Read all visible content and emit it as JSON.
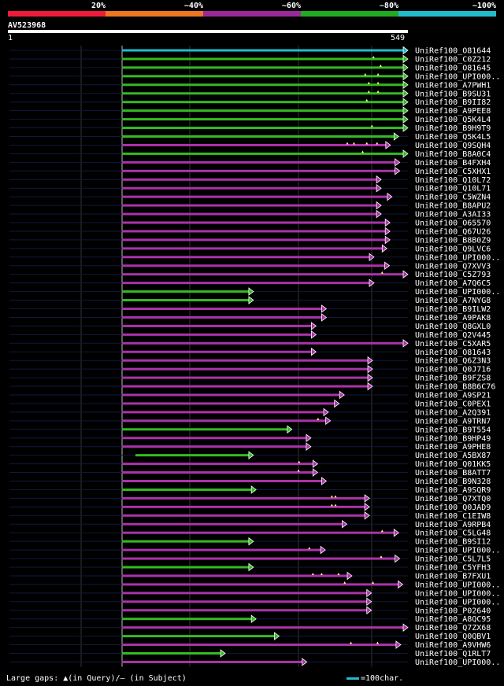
{
  "legend": [
    {
      "label": "20%",
      "color": "#ee1c3a"
    },
    {
      "label": "~40%",
      "color": "#ee7722"
    },
    {
      "label": "~60%",
      "color": "#9a2a9a"
    },
    {
      "label": "~80%",
      "color": "#22aa22"
    },
    {
      "label": "~100%",
      "color": "#22bbcc"
    }
  ],
  "query": {
    "id": "AV523968",
    "start": "1",
    "end": "549"
  },
  "colors": {
    "cyan": "#22bbcc",
    "green": "#33bb22",
    "magenta": "#aa33aa",
    "faint": "#101840",
    "grid": "#333333"
  },
  "hits": [
    {
      "name": "UniRef100_O81644",
      "color": "cyan",
      "start": 1,
      "end": 549,
      "gaps": []
    },
    {
      "name": "UniRef100_C0Z212",
      "color": "green",
      "start": 1,
      "end": 549,
      "gaps": [
        491
      ]
    },
    {
      "name": "UniRef100_O81645",
      "color": "green",
      "start": 1,
      "end": 549,
      "gaps": [
        505
      ]
    },
    {
      "name": "UniRef100_UPI000..",
      "color": "green",
      "start": 1,
      "end": 549,
      "gaps": [
        475,
        500
      ]
    },
    {
      "name": "UniRef100_A7PWH1",
      "color": "green",
      "start": 1,
      "end": 549,
      "gaps": [
        482,
        500
      ]
    },
    {
      "name": "UniRef100_B9SU31",
      "color": "green",
      "start": 1,
      "end": 549,
      "gaps": [
        482,
        500
      ]
    },
    {
      "name": "UniRef100_B9II82",
      "color": "green",
      "start": 1,
      "end": 549,
      "gaps": [
        478
      ]
    },
    {
      "name": "UniRef100_A9PEE8",
      "color": "green",
      "start": 1,
      "end": 549,
      "gaps": []
    },
    {
      "name": "UniRef100_Q5K4L4",
      "color": "green",
      "start": 1,
      "end": 549,
      "gaps": []
    },
    {
      "name": "UniRef100_B9H9T9",
      "color": "green",
      "start": 1,
      "end": 549,
      "gaps": [
        488
      ]
    },
    {
      "name": "UniRef100_Q5K4L5",
      "color": "green",
      "start": 1,
      "end": 531,
      "gaps": []
    },
    {
      "name": "UniRef100_Q9SQH4",
      "color": "magenta",
      "start": 1,
      "end": 515,
      "gaps": [
        440,
        453,
        478,
        498
      ]
    },
    {
      "name": "UniRef100_B8A0C4",
      "color": "green",
      "start": 1,
      "end": 549,
      "gaps": [
        470
      ]
    },
    {
      "name": "UniRef100_B4FXH4",
      "color": "magenta",
      "start": 1,
      "end": 533,
      "gaps": []
    },
    {
      "name": "UniRef100_C5XHX1",
      "color": "magenta",
      "start": 1,
      "end": 533,
      "gaps": []
    },
    {
      "name": "UniRef100_Q10L72",
      "color": "magenta",
      "start": 1,
      "end": 497,
      "gaps": []
    },
    {
      "name": "UniRef100_Q10L71",
      "color": "magenta",
      "start": 1,
      "end": 497,
      "gaps": []
    },
    {
      "name": "UniRef100_C5WZN4",
      "color": "magenta",
      "start": 1,
      "end": 518,
      "gaps": []
    },
    {
      "name": "UniRef100_B8APU2",
      "color": "magenta",
      "start": 1,
      "end": 497,
      "gaps": []
    },
    {
      "name": "UniRef100_A3AI33",
      "color": "magenta",
      "start": 1,
      "end": 497,
      "gaps": []
    },
    {
      "name": "UniRef100_O65570",
      "color": "magenta",
      "start": 1,
      "end": 514,
      "gaps": []
    },
    {
      "name": "UniRef100_Q67U26",
      "color": "magenta",
      "start": 1,
      "end": 514,
      "gaps": []
    },
    {
      "name": "UniRef100_B8B0Z9",
      "color": "magenta",
      "start": 1,
      "end": 514,
      "gaps": []
    },
    {
      "name": "UniRef100_Q9LVC6",
      "color": "magenta",
      "start": 1,
      "end": 508,
      "gaps": []
    },
    {
      "name": "UniRef100_UPI000..",
      "color": "magenta",
      "start": 1,
      "end": 483,
      "gaps": []
    },
    {
      "name": "UniRef100_Q7XVV3",
      "color": "magenta",
      "start": 1,
      "end": 513,
      "gaps": []
    },
    {
      "name": "UniRef100_C5Z793",
      "color": "magenta",
      "start": 1,
      "end": 549,
      "gaps": [
        508
      ]
    },
    {
      "name": "UniRef100_A7Q6C5",
      "color": "magenta",
      "start": 1,
      "end": 483,
      "gaps": []
    },
    {
      "name": "UniRef100_UPI000..",
      "color": "green",
      "start": 1,
      "end": 248,
      "gaps": []
    },
    {
      "name": "UniRef100_A7NYG8",
      "color": "green",
      "start": 1,
      "end": 248,
      "gaps": []
    },
    {
      "name": "UniRef100_B9ILW2",
      "color": "magenta",
      "start": 1,
      "end": 390,
      "gaps": []
    },
    {
      "name": "UniRef100_A9PAK8",
      "color": "magenta",
      "start": 1,
      "end": 390,
      "gaps": []
    },
    {
      "name": "UniRef100_Q8GXL0",
      "color": "magenta",
      "start": 1,
      "end": 370,
      "gaps": []
    },
    {
      "name": "UniRef100_Q2V445",
      "color": "magenta",
      "start": 1,
      "end": 370,
      "gaps": []
    },
    {
      "name": "UniRef100_C5XAR5",
      "color": "magenta",
      "start": 1,
      "end": 549,
      "gaps": []
    },
    {
      "name": "UniRef100_O81643",
      "color": "magenta",
      "start": 1,
      "end": 370,
      "gaps": []
    },
    {
      "name": "UniRef100_Q6Z3N3",
      "color": "magenta",
      "start": 1,
      "end": 480,
      "gaps": []
    },
    {
      "name": "UniRef100_Q0J716",
      "color": "magenta",
      "start": 1,
      "end": 480,
      "gaps": []
    },
    {
      "name": "UniRef100_B9FZS8",
      "color": "magenta",
      "start": 1,
      "end": 480,
      "gaps": []
    },
    {
      "name": "UniRef100_B8B6C76",
      "color": "magenta",
      "start": 1,
      "end": 480,
      "gaps": []
    },
    {
      "name": "UniRef100_A9SP21",
      "color": "magenta",
      "start": 1,
      "end": 425,
      "gaps": []
    },
    {
      "name": "UniRef100_C0PEX1",
      "color": "magenta",
      "start": 1,
      "end": 415,
      "gaps": []
    },
    {
      "name": "UniRef100_A2Q391",
      "color": "magenta",
      "start": 1,
      "end": 394,
      "gaps": []
    },
    {
      "name": "UniRef100_A9TRN7",
      "color": "magenta",
      "start": 1,
      "end": 398,
      "gaps": [
        383
      ]
    },
    {
      "name": "UniRef100_B9T554",
      "color": "green",
      "start": 1,
      "end": 323,
      "gaps": []
    },
    {
      "name": "UniRef100_B9HP49",
      "color": "magenta",
      "start": 1,
      "end": 360,
      "gaps": []
    },
    {
      "name": "UniRef100_A9PHE8",
      "color": "magenta",
      "start": 1,
      "end": 360,
      "gaps": []
    },
    {
      "name": "UniRef100_A5BX87",
      "color": "green",
      "start": 27,
      "end": 248,
      "gaps": []
    },
    {
      "name": "UniRef100_Q01KK5",
      "color": "magenta",
      "start": 1,
      "end": 373,
      "gaps": [
        346
      ]
    },
    {
      "name": "UniRef100_B8ATT7",
      "color": "magenta",
      "start": 1,
      "end": 373,
      "gaps": [
        345
      ]
    },
    {
      "name": "UniRef100_B9N328",
      "color": "magenta",
      "start": 1,
      "end": 390,
      "gaps": []
    },
    {
      "name": "UniRef100_A9SQR9",
      "color": "green",
      "start": 1,
      "end": 253,
      "gaps": []
    },
    {
      "name": "UniRef100_Q7XTQ0",
      "color": "magenta",
      "start": 1,
      "end": 474,
      "gaps": [
        410,
        417
      ]
    },
    {
      "name": "UniRef100_Q0JAD9",
      "color": "magenta",
      "start": 1,
      "end": 474,
      "gaps": [
        410,
        417
      ]
    },
    {
      "name": "UniRef100_C1EIW8",
      "color": "magenta",
      "start": 1,
      "end": 474,
      "gaps": []
    },
    {
      "name": "UniRef100_A9RPB4",
      "color": "magenta",
      "start": 1,
      "end": 430,
      "gaps": []
    },
    {
      "name": "UniRef100_C5LG48",
      "color": "magenta",
      "start": 1,
      "end": 531,
      "gaps": [
        508
      ]
    },
    {
      "name": "UniRef100_B9SI12",
      "color": "green",
      "start": 1,
      "end": 248,
      "gaps": []
    },
    {
      "name": "UniRef100_UPI000..",
      "color": "magenta",
      "start": 1,
      "end": 388,
      "gaps": [
        366
      ]
    },
    {
      "name": "UniRef100_C5L7L5",
      "color": "magenta",
      "start": 1,
      "end": 533,
      "gaps": [
        506
      ]
    },
    {
      "name": "UniRef100_C5YFH3",
      "color": "green",
      "start": 1,
      "end": 248,
      "gaps": []
    },
    {
      "name": "UniRef100_B7FXU1",
      "color": "magenta",
      "start": 1,
      "end": 440,
      "gaps": [
        373,
        390,
        423
      ]
    },
    {
      "name": "UniRef100_UPI000..",
      "color": "magenta",
      "start": 1,
      "end": 539,
      "gaps": [
        435,
        490
      ]
    },
    {
      "name": "UniRef100_UPI000..",
      "color": "magenta",
      "start": 1,
      "end": 478,
      "gaps": []
    },
    {
      "name": "UniRef100_UPI000..",
      "color": "magenta",
      "start": 1,
      "end": 478,
      "gaps": []
    },
    {
      "name": "UniRef100_P02640",
      "color": "magenta",
      "start": 1,
      "end": 478,
      "gaps": []
    },
    {
      "name": "UniRef100_A8QC95",
      "color": "green",
      "start": 1,
      "end": 253,
      "gaps": []
    },
    {
      "name": "UniRef100_Q7ZX68",
      "color": "magenta",
      "start": 1,
      "end": 549,
      "gaps": []
    },
    {
      "name": "UniRef100_Q0QBV1",
      "color": "green",
      "start": 1,
      "end": 298,
      "gaps": []
    },
    {
      "name": "UniRef100_A9VHW6",
      "color": "magenta",
      "start": 1,
      "end": 535,
      "gaps": [
        447,
        499
      ]
    },
    {
      "name": "UniRef100_Q1RLT7",
      "color": "green",
      "start": 1,
      "end": 193,
      "gaps": []
    },
    {
      "name": "UniRef100_UPI000..",
      "color": "magenta",
      "start": 1,
      "end": 352,
      "gaps": []
    }
  ],
  "footer": {
    "left": "Large gaps: ▲(in Query)/– (in Subject)",
    "right": "=100char."
  }
}
